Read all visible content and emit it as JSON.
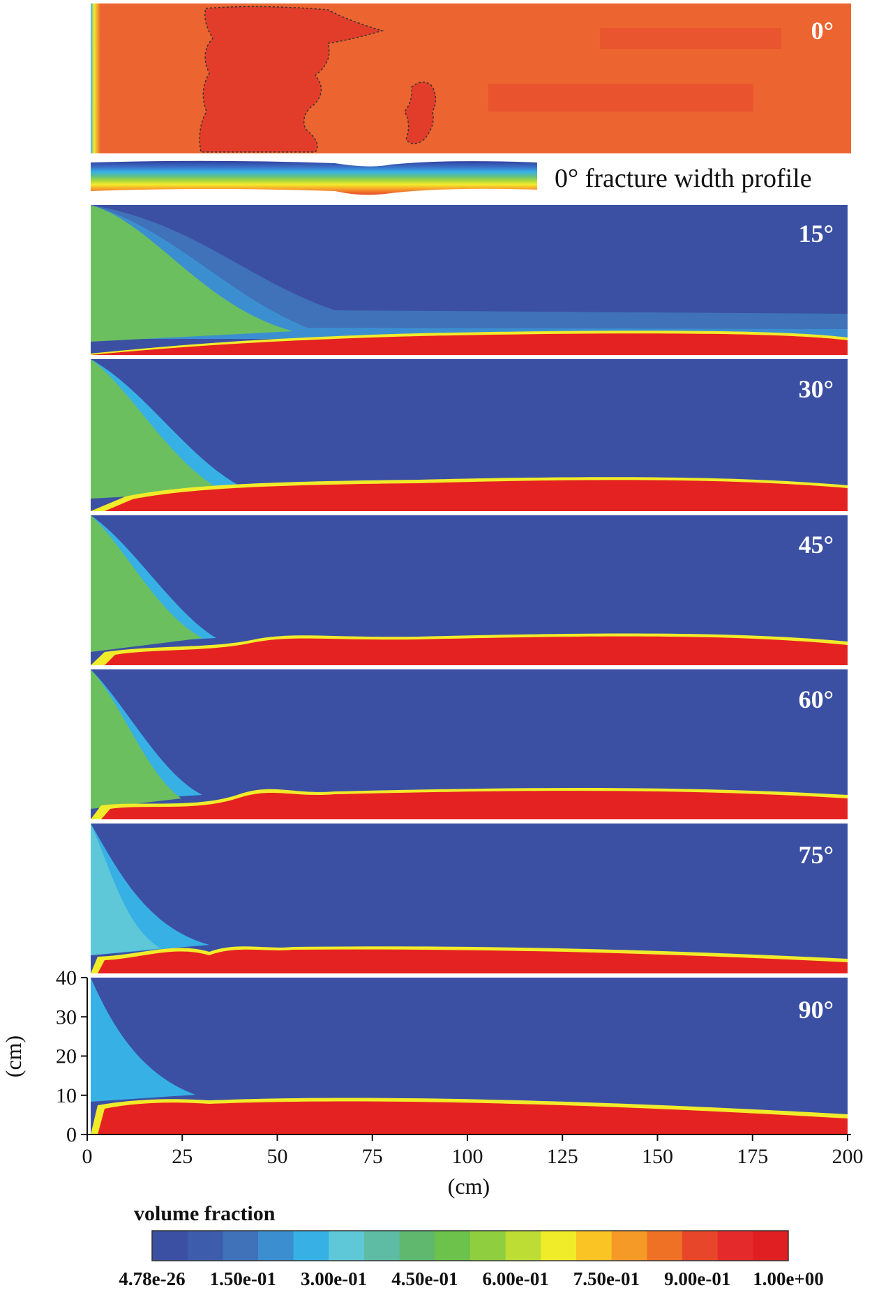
{
  "panels": [
    {
      "angle_label": "0°"
    },
    {
      "angle_label": "15°"
    },
    {
      "angle_label": "30°"
    },
    {
      "angle_label": "45°"
    },
    {
      "angle_label": "60°"
    },
    {
      "angle_label": "75°"
    },
    {
      "angle_label": "90°"
    }
  ],
  "profile_caption": "0° fracture width profile",
  "x_axis": {
    "title": "(cm)",
    "ticks": [
      "0",
      "25",
      "50",
      "75",
      "100",
      "125",
      "150",
      "175",
      "200"
    ]
  },
  "y_axis": {
    "title": "(cm)",
    "ticks": [
      "40",
      "30",
      "20",
      "10",
      "0"
    ]
  },
  "colorbar": {
    "title": "volume fraction",
    "tick_labels": [
      "4.78e-26",
      "1.50e-01",
      "3.00e-01",
      "4.50e-01",
      "6.00e-01",
      "7.50e-01",
      "9.00e-01",
      "1.00e+00"
    ],
    "colors": [
      "#3b50a3",
      "#3d5cab",
      "#3f72b8",
      "#3b8fd0",
      "#37b0e6",
      "#5fc8d8",
      "#5ebca5",
      "#5fb86e",
      "#6cc24a",
      "#8fce3f",
      "#bedd34",
      "#f1ec2a",
      "#f9c424",
      "#f59a26",
      "#ef7126",
      "#e8462a",
      "#e42a2a",
      "#e01f22"
    ]
  },
  "colors": {
    "deep_blue": "#3b50a3",
    "green": "#6cbf5f",
    "red": "#e52222",
    "orange": "#ec6530"
  }
}
